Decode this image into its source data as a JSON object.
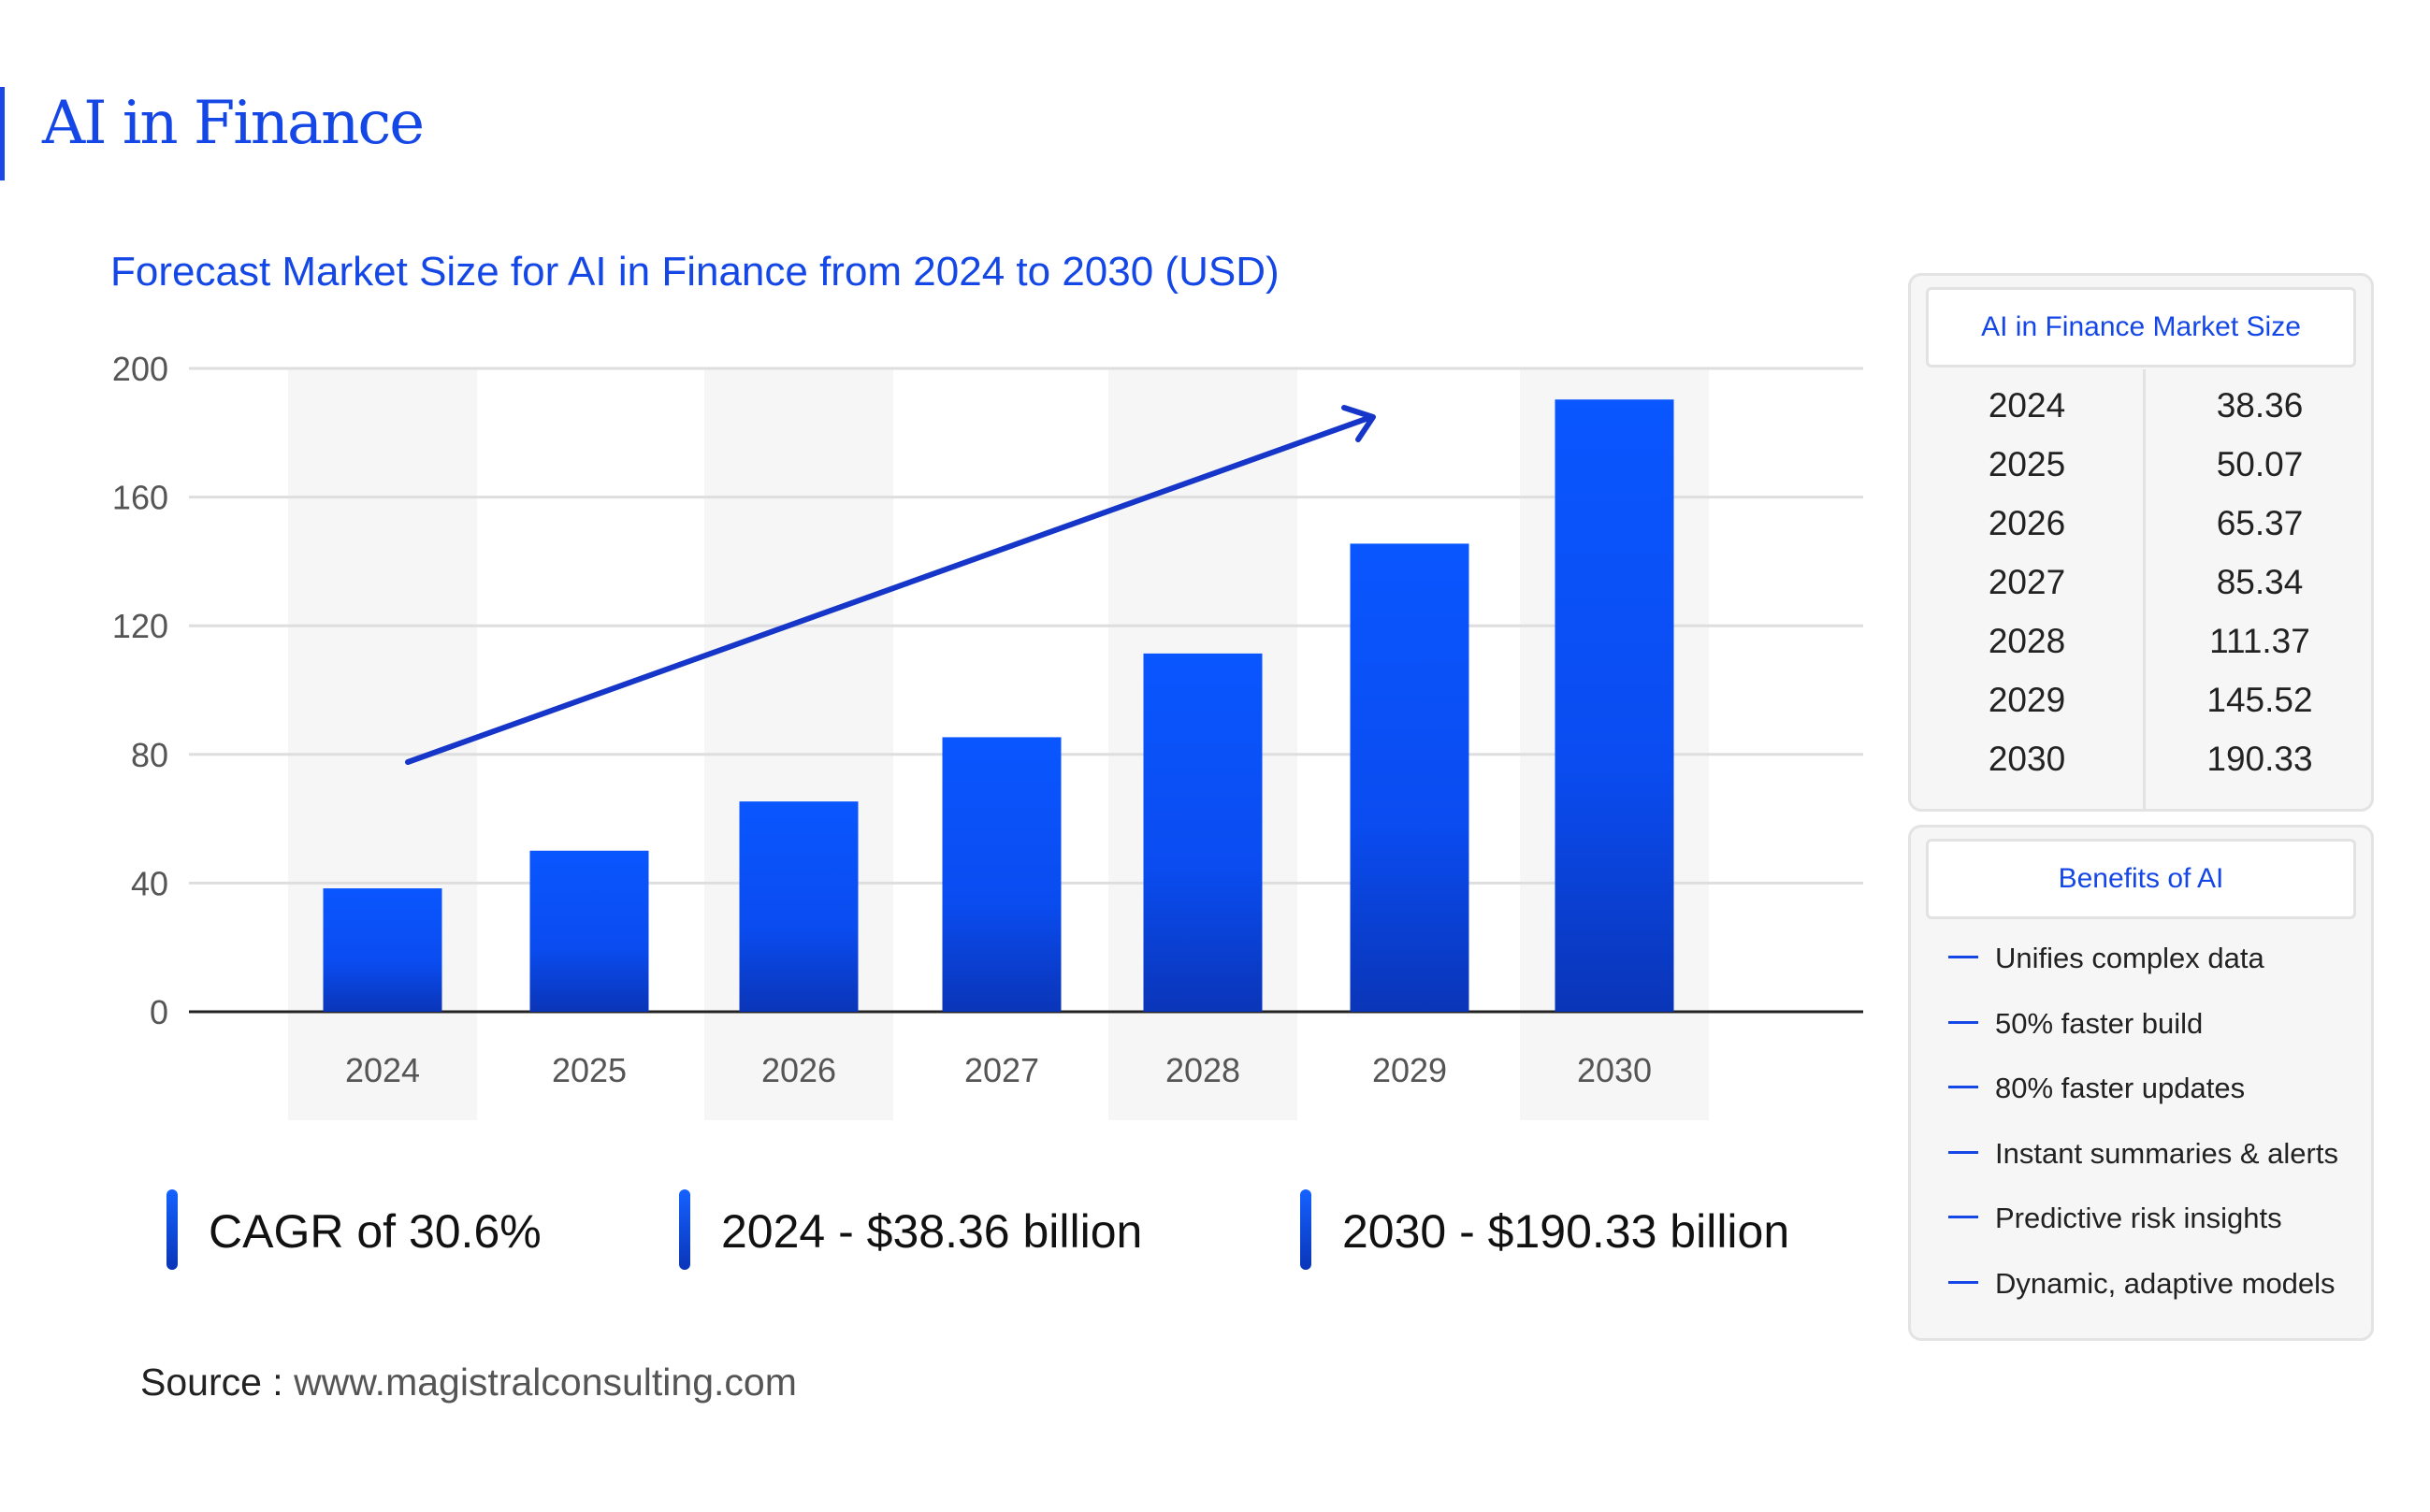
{
  "header": {
    "title": "AI in Finance"
  },
  "chart_data": {
    "type": "bar",
    "title": "Forecast Market Size for AI in Finance from 2024 to 2030 (USD)",
    "xlabel": "",
    "ylabel": "",
    "categories": [
      "2024",
      "2025",
      "2026",
      "2027",
      "2028",
      "2029",
      "2030"
    ],
    "values": [
      38.36,
      50.07,
      65.37,
      85.34,
      111.37,
      145.52,
      190.33
    ],
    "ylim": [
      0,
      200
    ],
    "yticks": [
      "0",
      "40",
      "80",
      "120",
      "160",
      "200"
    ],
    "grid": true,
    "bar_color": "#0a56ff",
    "trend_arrow": true
  },
  "stats": [
    {
      "text": "CAGR of 30.6%"
    },
    {
      "text": "2024 - $38.36 billion"
    },
    {
      "text": "2030 - $190.33 billion"
    }
  ],
  "source": {
    "label": "Source :",
    "url": "www.magistralconsulting.com"
  },
  "market_size_table": {
    "title": "AI in Finance Market Size",
    "rows": [
      {
        "year": "2024",
        "value": "38.36"
      },
      {
        "year": "2025",
        "value": "50.07"
      },
      {
        "year": "2026",
        "value": "65.37"
      },
      {
        "year": "2027",
        "value": "85.34"
      },
      {
        "year": "2028",
        "value": "111.37"
      },
      {
        "year": "2029",
        "value": "145.52"
      },
      {
        "year": "2030",
        "value": "190.33"
      }
    ]
  },
  "benefits": {
    "title": "Benefits of AI",
    "items": [
      "Unifies complex data",
      "50% faster build",
      "80% faster updates",
      "Instant summaries & alerts",
      "Predictive risk insights",
      "Dynamic, adaptive models"
    ]
  },
  "colors": {
    "accent": "#1447e6",
    "bar_top": "#0a56ff",
    "bar_bottom": "#0a35b8"
  }
}
